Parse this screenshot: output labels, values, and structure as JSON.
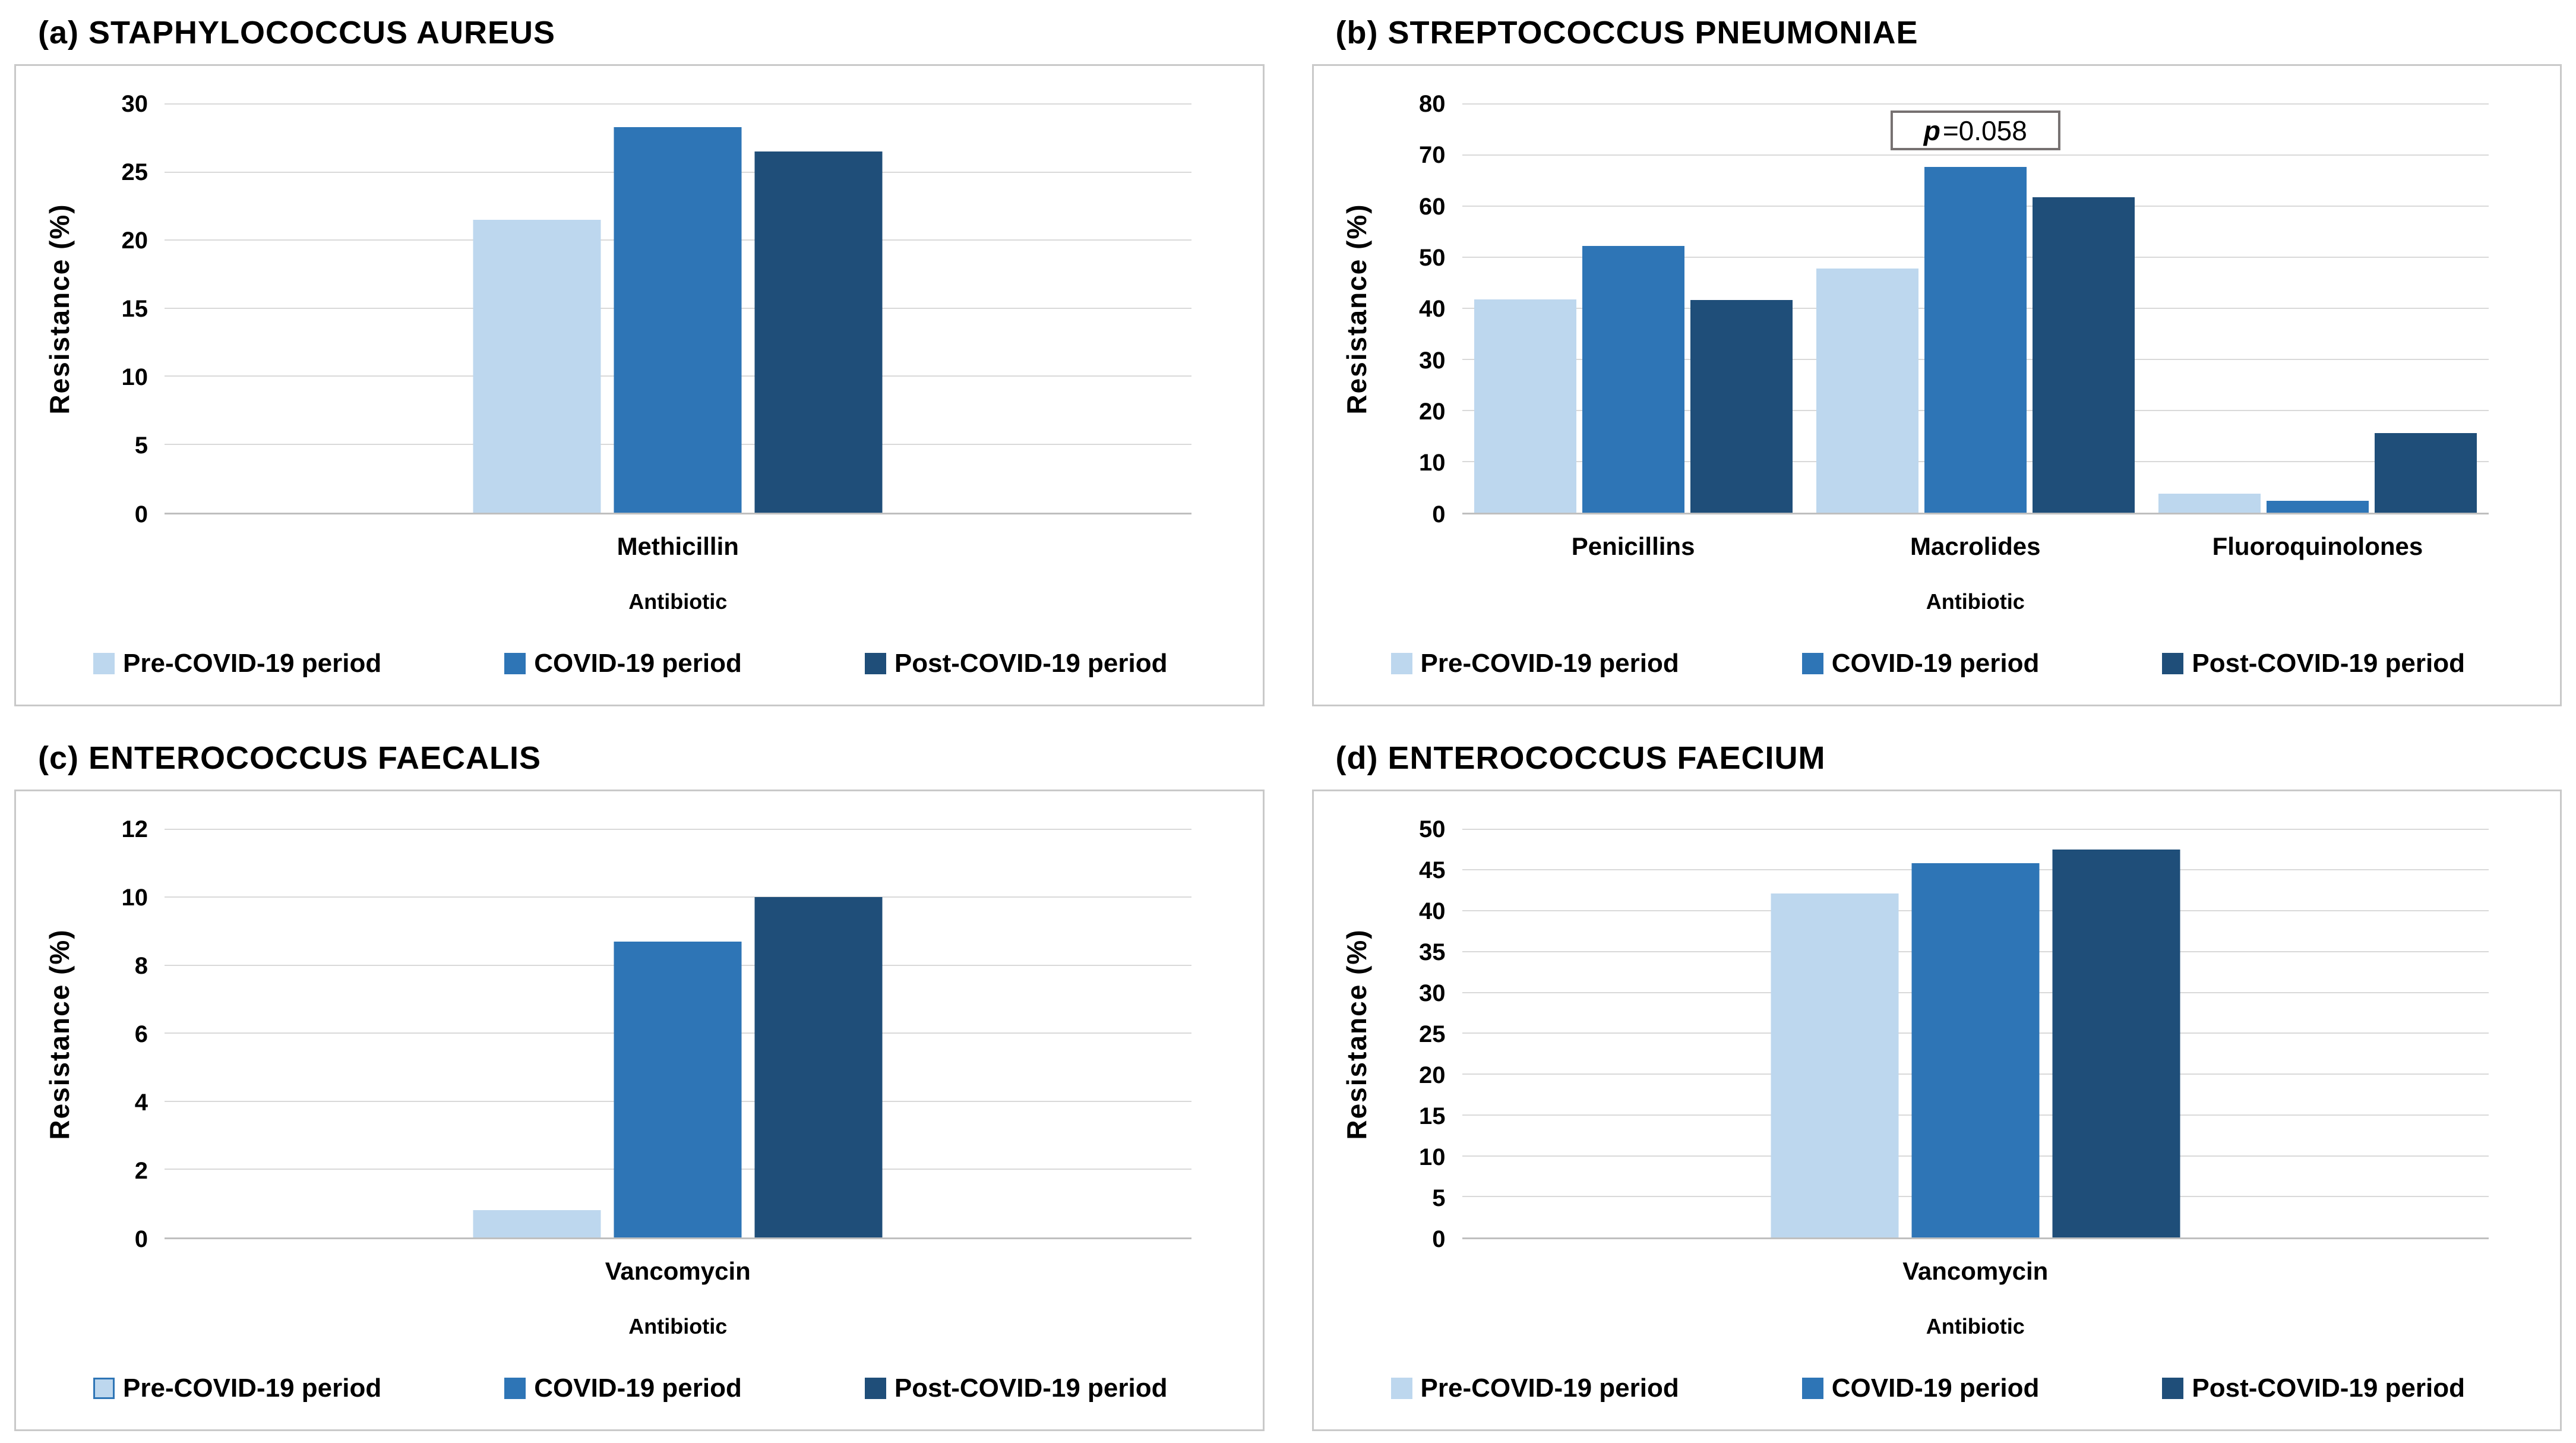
{
  "axes": {
    "ylabel": "Resistance (%)",
    "xlabel": "Antibiotic"
  },
  "colors": {
    "series": [
      "#BDD7EE",
      "#2E75B6",
      "#1F4E79"
    ],
    "gridline": "#D9D9D9",
    "axis_line": "#BFBFBF",
    "box_border": "#C9C9C9",
    "annotation_border": "#767171",
    "text": "#000000"
  },
  "chart_data": [
    {
      "id": "a",
      "type": "bar",
      "title": "(a) STAPHYLOCOCCUS AUREUS",
      "categories": [
        "Methicillin"
      ],
      "series": [
        {
          "name": "Pre-COVID-19 period",
          "values": [
            21.5
          ]
        },
        {
          "name": "COVID-19 period",
          "values": [
            28.3
          ]
        },
        {
          "name": "Post-COVID-19 period",
          "values": [
            26.5
          ]
        }
      ],
      "ylabel": "Resistance (%)",
      "xlabel": "Antibiotic",
      "ylim": [
        0,
        30
      ],
      "ystep": 5,
      "grid": true,
      "legend_position": "bottom"
    },
    {
      "id": "b",
      "type": "bar",
      "title": "(b) STREPTOCOCCUS PNEUMONIAE",
      "categories": [
        "Penicillins",
        "Macrolides",
        "Fluoroquinolones"
      ],
      "series": [
        {
          "name": "Pre-COVID-19 period",
          "values": [
            41.7,
            47.8,
            3.7
          ]
        },
        {
          "name": "COVID-19 period",
          "values": [
            52.2,
            67.7,
            2.3
          ]
        },
        {
          "name": "Post-COVID-19 period",
          "values": [
            41.6,
            61.7,
            15.5
          ]
        }
      ],
      "annotation": {
        "italic_part": "p",
        "rest": "=0.058",
        "above_category": "Macrolides"
      },
      "ylabel": "Resistance (%)",
      "xlabel": "Antibiotic",
      "ylim": [
        0,
        80
      ],
      "ystep": 10,
      "grid": true,
      "legend_position": "bottom"
    },
    {
      "id": "c",
      "type": "bar",
      "title": "(c) ENTEROCOCCUS FAECALIS",
      "categories": [
        "Vancomycin"
      ],
      "series": [
        {
          "name": "Pre-COVID-19 period",
          "values": [
            0.8
          ]
        },
        {
          "name": "COVID-19 period",
          "values": [
            8.7
          ]
        },
        {
          "name": "Post-COVID-19 period",
          "values": [
            10.0
          ]
        }
      ],
      "pre_marker_border": true,
      "ylabel": "Resistance (%)",
      "xlabel": "Antibiotic",
      "ylim": [
        0,
        12
      ],
      "ystep": 2,
      "grid": true,
      "legend_position": "bottom"
    },
    {
      "id": "d",
      "type": "bar",
      "title": "(d) ENTEROCOCCUS FAECIUM",
      "categories": [
        "Vancomycin"
      ],
      "series": [
        {
          "name": "Pre-COVID-19 period",
          "values": [
            42.1
          ]
        },
        {
          "name": "COVID-19 period",
          "values": [
            45.8
          ]
        },
        {
          "name": "Post-COVID-19 period",
          "values": [
            47.5
          ]
        }
      ],
      "ylabel": "Resistance (%)",
      "xlabel": "Antibiotic",
      "ylim": [
        0,
        50
      ],
      "ystep": 5,
      "grid": true,
      "legend_position": "bottom"
    }
  ]
}
